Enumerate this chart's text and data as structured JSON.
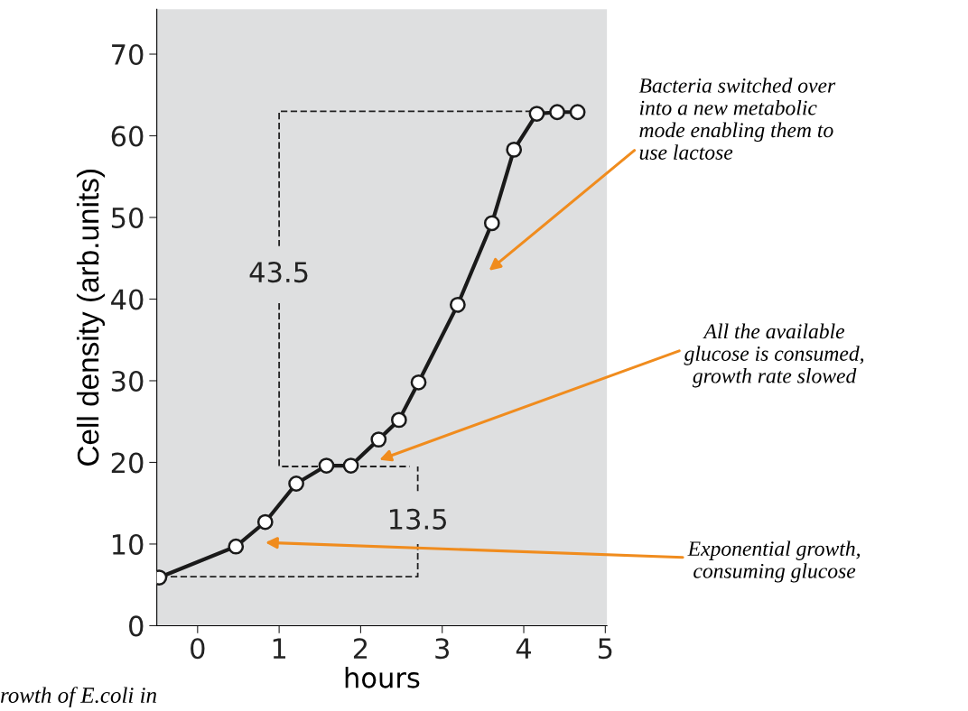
{
  "chart_data": {
    "type": "line",
    "xlabel": "hours",
    "ylabel": "Cell density (arb.units)",
    "x": [
      -0.47,
      0.47,
      0.83,
      1.21,
      1.58,
      1.88,
      2.22,
      2.47,
      2.71,
      3.19,
      3.61,
      3.88,
      4.16,
      4.41,
      4.66
    ],
    "series": [
      {
        "color": "#1a1a1a",
        "values": [
          5.9,
          9.7,
          12.7,
          17.4,
          19.6,
          19.6,
          22.8,
          25.2,
          29.8,
          39.3,
          49.3,
          58.3,
          62.7,
          62.9,
          62.9
        ]
      },
      {
        "color": "#222222",
        "line_style": "dashed",
        "marker": "none",
        "x": [
          4.1,
          1,
          1
        ],
        "values": [
          63,
          63,
          46.5
        ]
      },
      {
        "color": "#222222",
        "line_style": "dashed",
        "marker": "none",
        "x": [
          1,
          1,
          2.6
        ],
        "values": [
          39.5,
          19.5,
          19.5
        ]
      },
      {
        "color": "#222222",
        "line_style": "dashed",
        "marker": "none",
        "x": [
          2.7,
          2.7
        ],
        "values": [
          16.5,
          19.5
        ]
      },
      {
        "color": "#222222",
        "line_style": "dashed",
        "marker": "none",
        "x": [
          -0.45,
          2.7,
          2.7
        ],
        "values": [
          6,
          6,
          10
        ]
      }
    ],
    "xlim": [
      -0.5,
      5.02
    ],
    "ylim": [
      0,
      75.5
    ],
    "xticks": [
      0,
      1,
      2,
      3,
      4,
      5
    ],
    "yticks": [
      0,
      10,
      20,
      30,
      40,
      50,
      60,
      70
    ],
    "marker": "circle",
    "line_style": "solid",
    "grid": false,
    "annotations": [
      "43.5",
      "13.5",
      "Bacteria switched over\ninto a new metabolic\nmode enabling them to\nuse lactose",
      "All the available\nglucose is consumed,\ngrowth rate slowed",
      "Exponential growth,\nconsuming glucose",
      "rowth of E.coli in"
    ]
  }
}
